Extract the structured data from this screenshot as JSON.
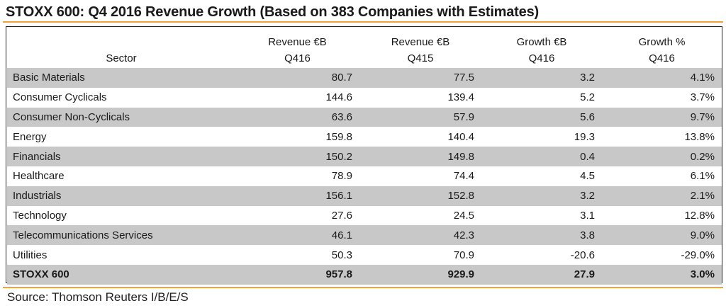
{
  "title": "STOXX 600: Q4 2016 Revenue Growth (Based on 383 Companies with Estimates)",
  "header": {
    "row1": [
      "",
      "Revenue €B",
      "Revenue €B",
      "Growth €B",
      "Growth %"
    ],
    "row2": [
      "Sector",
      "Q416",
      "Q415",
      "Q416",
      "Q416"
    ]
  },
  "rows": [
    {
      "sector": "Basic Materials",
      "rev_q416": "80.7",
      "rev_q415": "77.5",
      "growth_eur": "3.2",
      "growth_pct": "4.1%"
    },
    {
      "sector": "Consumer Cyclicals",
      "rev_q416": "144.6",
      "rev_q415": "139.4",
      "growth_eur": "5.2",
      "growth_pct": "3.7%"
    },
    {
      "sector": "Consumer Non-Cyclicals",
      "rev_q416": "63.6",
      "rev_q415": "57.9",
      "growth_eur": "5.6",
      "growth_pct": "9.7%"
    },
    {
      "sector": "Energy",
      "rev_q416": "159.8",
      "rev_q415": "140.4",
      "growth_eur": "19.3",
      "growth_pct": "13.8%"
    },
    {
      "sector": "Financials",
      "rev_q416": "150.2",
      "rev_q415": "149.8",
      "growth_eur": "0.4",
      "growth_pct": "0.2%"
    },
    {
      "sector": "Healthcare",
      "rev_q416": "78.9",
      "rev_q415": "74.4",
      "growth_eur": "4.5",
      "growth_pct": "6.1%"
    },
    {
      "sector": "Industrials",
      "rev_q416": "156.1",
      "rev_q415": "152.8",
      "growth_eur": "3.2",
      "growth_pct": "2.1%"
    },
    {
      "sector": "Technology",
      "rev_q416": "27.6",
      "rev_q415": "24.5",
      "growth_eur": "3.1",
      "growth_pct": "12.8%"
    },
    {
      "sector": "Telecommunications Services",
      "rev_q416": "46.1",
      "rev_q415": "42.3",
      "growth_eur": "3.8",
      "growth_pct": "9.0%"
    },
    {
      "sector": "Utilities",
      "rev_q416": "50.3",
      "rev_q415": "70.9",
      "growth_eur": "-20.6",
      "growth_pct": "-29.0%"
    }
  ],
  "total": {
    "sector": "STOXX 600",
    "rev_q416": "957.8",
    "rev_q415": "929.9",
    "growth_eur": "27.9",
    "growth_pct": "3.0%"
  },
  "source": "Source: Thomson Reuters I/B/E/S",
  "colors": {
    "accent_rule": "#f0a33c",
    "row_shade": "#c8c8c8"
  }
}
